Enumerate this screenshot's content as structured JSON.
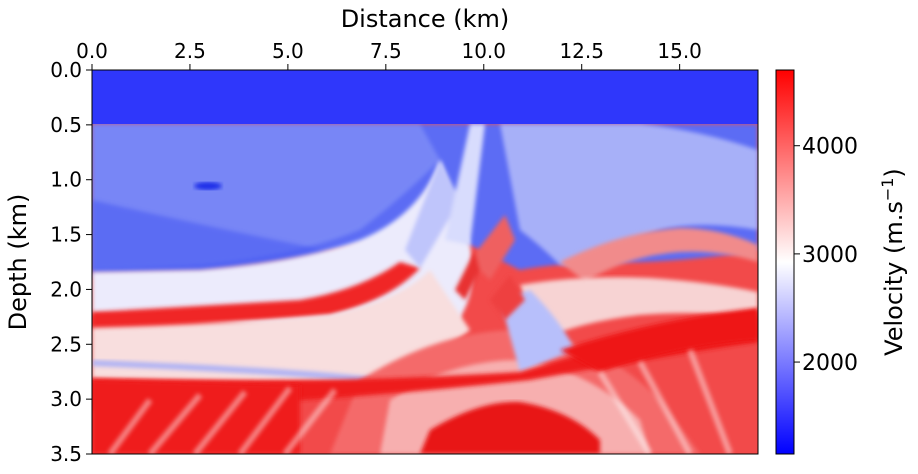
{
  "chart_data": {
    "type": "heatmap",
    "xlabel": "Distance (km)",
    "ylabel": "Depth (km)",
    "xlim": [
      0,
      17
    ],
    "ylim": [
      3.5,
      0
    ],
    "x_axis_position": "top",
    "x_ticks": [
      "0.0",
      "2.5",
      "5.0",
      "7.5",
      "10.0",
      "12.5",
      "15.0"
    ],
    "x_tick_values": [
      0,
      2.5,
      5,
      7.5,
      10,
      12.5,
      15
    ],
    "y_ticks": [
      "0.0",
      "0.5",
      "1.0",
      "1.5",
      "2.0",
      "2.5",
      "3.0",
      "3.5"
    ],
    "y_tick_values": [
      0,
      0.5,
      1,
      1.5,
      2,
      2.5,
      3,
      3.5
    ],
    "colorbar": {
      "label_main": "Velocity (m.s",
      "label_exp": "−1",
      "label_close": ")",
      "range": [
        1150,
        4700
      ],
      "ticks": [
        "2000",
        "3000",
        "4000"
      ],
      "tick_values": [
        2000,
        3000,
        4000
      ],
      "colormap": "bwr",
      "color_low": "#0000ff",
      "color_mid": "#ffffff",
      "color_high": "#ff0000"
    },
    "water_layer": {
      "depth_bottom": 0.5,
      "velocity": 1500
    },
    "grid": false
  }
}
